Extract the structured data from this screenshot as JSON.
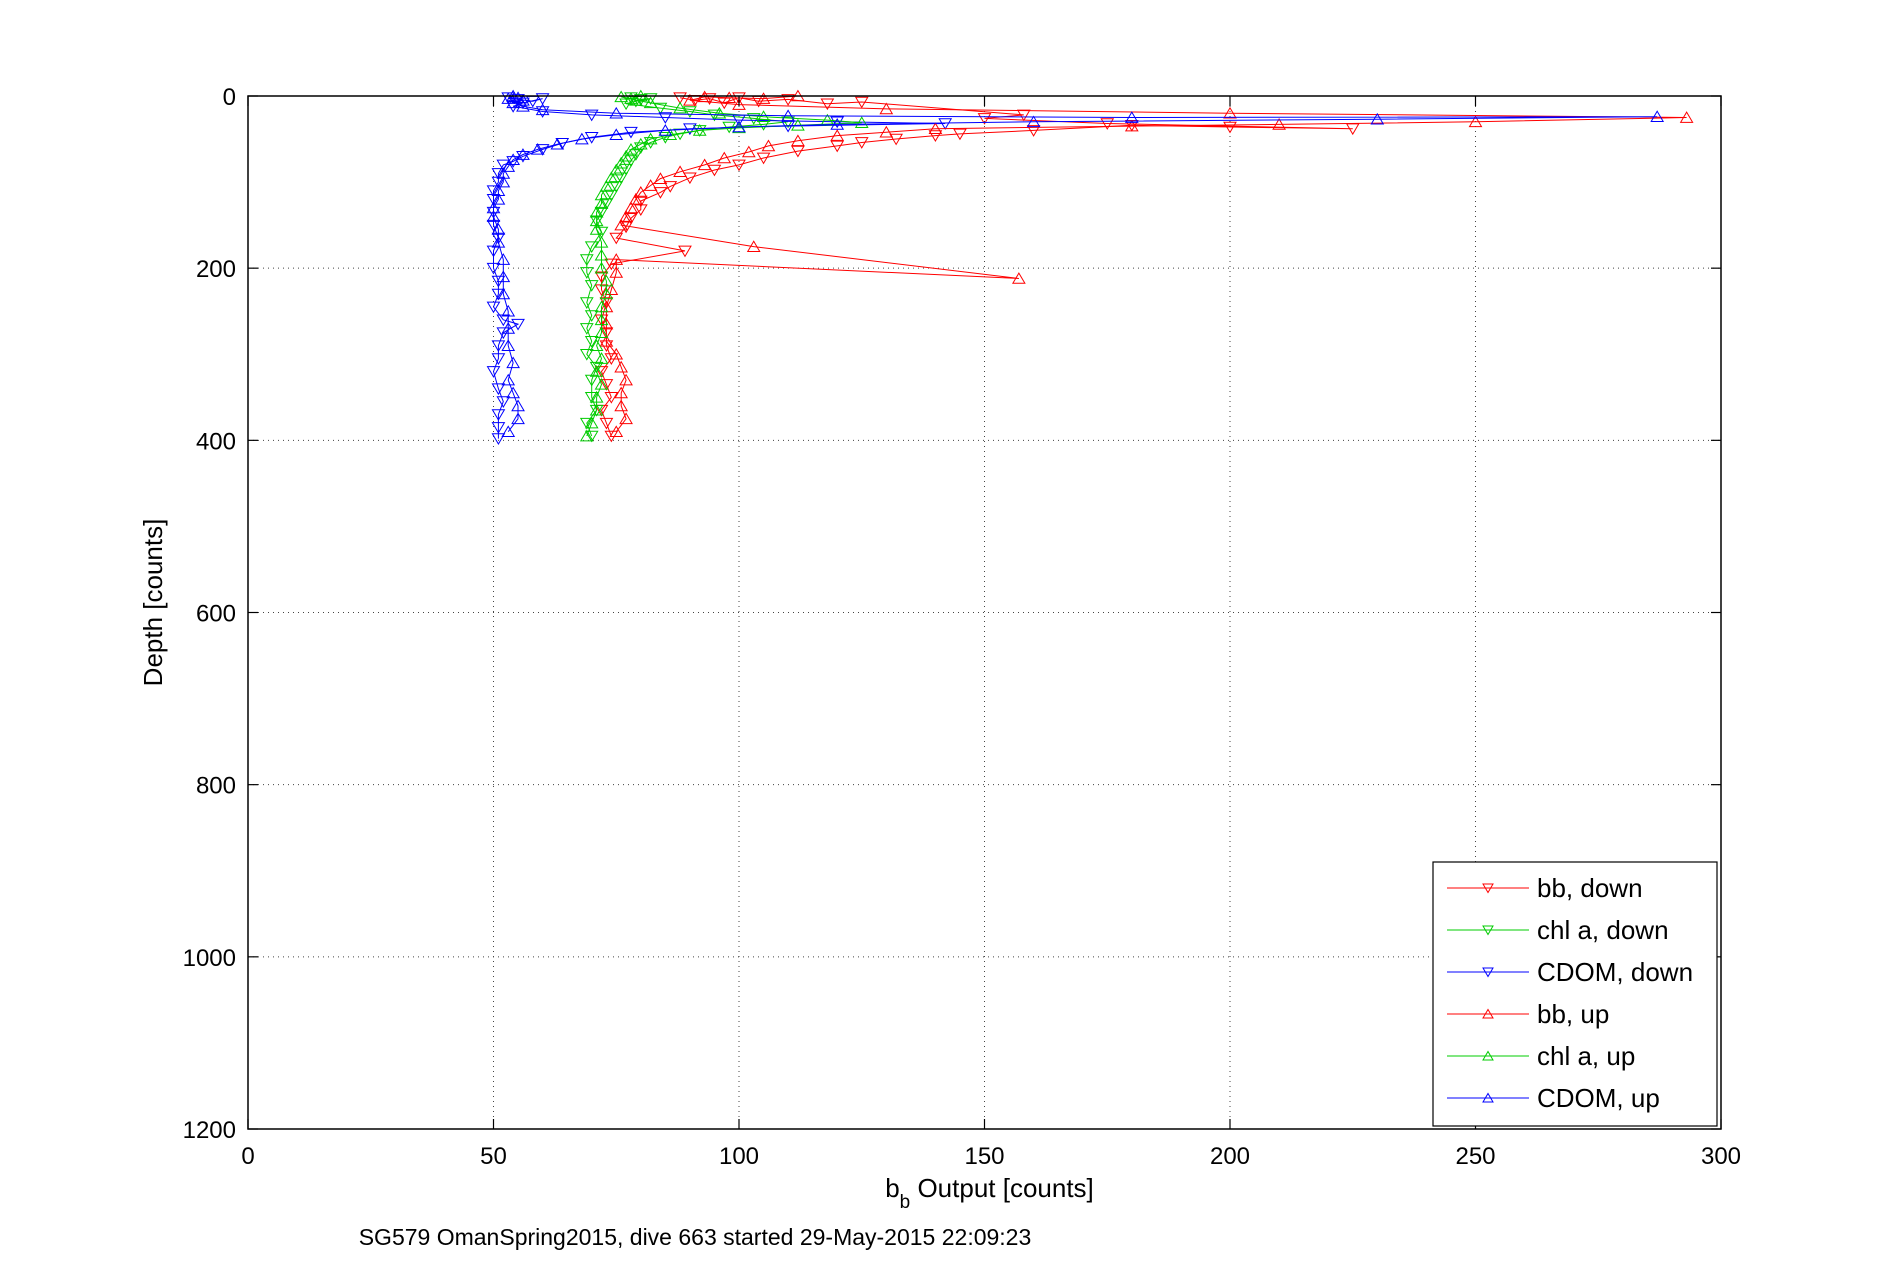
{
  "figure": {
    "caption": "SG579 OmanSpring2015, dive 663 started 29-May-2015 22:09:23"
  },
  "chart_data": {
    "type": "scatter",
    "title": "",
    "xlabel_main": "b",
    "xlabel_sub": "b",
    "xlabel_rest": " Output [counts]",
    "ylabel": "Depth [counts]",
    "xlim": [
      0,
      300
    ],
    "ylim": [
      0,
      1200
    ],
    "y_reversed": true,
    "grid": true,
    "legend_position": "bottom-right",
    "xticks": [
      0,
      50,
      100,
      150,
      200,
      250,
      300
    ],
    "yticks": [
      0,
      200,
      400,
      600,
      800,
      1000,
      1200
    ],
    "xtick_labels": [
      "0",
      "50",
      "100",
      "150",
      "200",
      "250",
      "300"
    ],
    "ytick_labels": [
      "0",
      "200",
      "400",
      "600",
      "800",
      "1000",
      "1200"
    ],
    "series": [
      {
        "name": "bb, down",
        "color": "#ff0000",
        "marker": "triangle-down",
        "line": true,
        "points": [
          [
            88,
            2
          ],
          [
            91,
            5
          ],
          [
            94,
            3
          ],
          [
            97,
            8
          ],
          [
            100,
            2
          ],
          [
            104,
            6
          ],
          [
            110,
            4
          ],
          [
            118,
            9
          ],
          [
            125,
            7
          ],
          [
            158,
            22
          ],
          [
            150,
            26
          ],
          [
            175,
            32
          ],
          [
            225,
            38
          ],
          [
            200,
            36
          ],
          [
            180,
            34
          ],
          [
            160,
            40
          ],
          [
            145,
            44
          ],
          [
            140,
            46
          ],
          [
            132,
            50
          ],
          [
            125,
            54
          ],
          [
            120,
            58
          ],
          [
            112,
            64
          ],
          [
            105,
            72
          ],
          [
            100,
            80
          ],
          [
            95,
            86
          ],
          [
            90,
            95
          ],
          [
            86,
            105
          ],
          [
            84,
            112
          ],
          [
            80,
            122
          ],
          [
            80,
            132
          ],
          [
            78,
            142
          ],
          [
            77,
            152
          ],
          [
            75,
            165
          ],
          [
            89,
            180
          ],
          [
            74,
            195
          ],
          [
            72,
            210
          ],
          [
            72,
            225
          ],
          [
            73,
            240
          ],
          [
            72,
            260
          ],
          [
            73,
            275
          ],
          [
            73,
            290
          ],
          [
            74,
            305
          ],
          [
            72,
            320
          ],
          [
            73,
            335
          ],
          [
            74,
            350
          ],
          [
            72,
            365
          ],
          [
            73,
            380
          ],
          [
            74,
            395
          ]
        ]
      },
      {
        "name": "chl a, down",
        "color": "#00cc00",
        "marker": "triangle-down",
        "line": true,
        "points": [
          [
            78,
            2
          ],
          [
            80,
            4
          ],
          [
            82,
            3
          ],
          [
            79,
            6
          ],
          [
            77,
            9
          ],
          [
            84,
            14
          ],
          [
            90,
            18
          ],
          [
            95,
            22
          ],
          [
            103,
            26
          ],
          [
            110,
            30
          ],
          [
            105,
            33
          ],
          [
            98,
            36
          ],
          [
            92,
            40
          ],
          [
            88,
            44
          ],
          [
            85,
            48
          ],
          [
            82,
            54
          ],
          [
            80,
            60
          ],
          [
            79,
            68
          ],
          [
            78,
            75
          ],
          [
            77,
            85
          ],
          [
            76,
            95
          ],
          [
            75,
            105
          ],
          [
            74,
            115
          ],
          [
            73,
            125
          ],
          [
            72,
            135
          ],
          [
            71,
            145
          ],
          [
            72,
            158
          ],
          [
            70,
            175
          ],
          [
            69,
            190
          ],
          [
            69,
            205
          ],
          [
            70,
            220
          ],
          [
            69,
            240
          ],
          [
            70,
            255
          ],
          [
            69,
            270
          ],
          [
            70,
            285
          ],
          [
            69,
            300
          ],
          [
            71,
            315
          ],
          [
            70,
            330
          ],
          [
            70,
            350
          ],
          [
            71,
            365
          ],
          [
            69,
            380
          ],
          [
            70,
            395
          ]
        ]
      },
      {
        "name": "CDOM, down",
        "color": "#0000ff",
        "marker": "triangle-down",
        "line": true,
        "points": [
          [
            53,
            2
          ],
          [
            55,
            4
          ],
          [
            58,
            6
          ],
          [
            60,
            3
          ],
          [
            56,
            8
          ],
          [
            54,
            12
          ],
          [
            60,
            18
          ],
          [
            70,
            22
          ],
          [
            85,
            25
          ],
          [
            100,
            28
          ],
          [
            120,
            30
          ],
          [
            142,
            32
          ],
          [
            110,
            35
          ],
          [
            90,
            38
          ],
          [
            78,
            42
          ],
          [
            70,
            48
          ],
          [
            64,
            55
          ],
          [
            60,
            62
          ],
          [
            56,
            70
          ],
          [
            54,
            76
          ],
          [
            52,
            80
          ],
          [
            51,
            90
          ],
          [
            51,
            100
          ],
          [
            50,
            110
          ],
          [
            50,
            120
          ],
          [
            50,
            135
          ],
          [
            50,
            150
          ],
          [
            51,
            165
          ],
          [
            50,
            180
          ],
          [
            50,
            200
          ],
          [
            51,
            215
          ],
          [
            51,
            230
          ],
          [
            50,
            245
          ],
          [
            52,
            260
          ],
          [
            55,
            265
          ],
          [
            52,
            275
          ],
          [
            51,
            290
          ],
          [
            51,
            305
          ],
          [
            50,
            320
          ],
          [
            51,
            340
          ],
          [
            52,
            355
          ],
          [
            51,
            370
          ],
          [
            51,
            385
          ],
          [
            51,
            398
          ]
        ]
      },
      {
        "name": "bb, up",
        "color": "#ff0000",
        "marker": "triangle-up",
        "line": true,
        "points": [
          [
            112,
            0
          ],
          [
            105,
            3
          ],
          [
            98,
            2
          ],
          [
            93,
            1
          ],
          [
            90,
            5
          ],
          [
            100,
            10
          ],
          [
            130,
            15
          ],
          [
            200,
            20
          ],
          [
            293,
            25
          ],
          [
            250,
            30
          ],
          [
            210,
            33
          ],
          [
            180,
            35
          ],
          [
            140,
            38
          ],
          [
            130,
            42
          ],
          [
            120,
            46
          ],
          [
            112,
            52
          ],
          [
            106,
            58
          ],
          [
            102,
            65
          ],
          [
            97,
            72
          ],
          [
            93,
            80
          ],
          [
            88,
            88
          ],
          [
            84,
            96
          ],
          [
            82,
            104
          ],
          [
            80,
            112
          ],
          [
            79,
            120
          ],
          [
            78,
            130
          ],
          [
            77,
            140
          ],
          [
            76,
            150
          ],
          [
            103,
            175
          ],
          [
            157,
            212
          ],
          [
            75,
            190
          ],
          [
            75,
            205
          ],
          [
            74,
            225
          ],
          [
            73,
            245
          ],
          [
            73,
            265
          ],
          [
            73,
            285
          ],
          [
            75,
            300
          ],
          [
            76,
            315
          ],
          [
            77,
            330
          ],
          [
            76,
            345
          ],
          [
            76,
            360
          ],
          [
            77,
            375
          ],
          [
            75,
            390
          ]
        ]
      },
      {
        "name": "chl a, up",
        "color": "#00cc00",
        "marker": "triangle-up",
        "line": true,
        "points": [
          [
            80,
            0
          ],
          [
            78,
            3
          ],
          [
            76,
            1
          ],
          [
            79,
            5
          ],
          [
            82,
            8
          ],
          [
            88,
            14
          ],
          [
            96,
            20
          ],
          [
            105,
            24
          ],
          [
            118,
            28
          ],
          [
            125,
            31
          ],
          [
            112,
            34
          ],
          [
            100,
            37
          ],
          [
            92,
            40
          ],
          [
            86,
            45
          ],
          [
            82,
            50
          ],
          [
            80,
            56
          ],
          [
            78,
            62
          ],
          [
            77,
            70
          ],
          [
            76,
            78
          ],
          [
            75,
            86
          ],
          [
            74,
            95
          ],
          [
            73,
            105
          ],
          [
            72,
            115
          ],
          [
            72,
            125
          ],
          [
            71,
            135
          ],
          [
            71,
            145
          ],
          [
            71,
            155
          ],
          [
            72,
            170
          ],
          [
            72,
            185
          ],
          [
            72,
            200
          ],
          [
            73,
            215
          ],
          [
            73,
            230
          ],
          [
            72,
            245
          ],
          [
            72,
            260
          ],
          [
            72,
            275
          ],
          [
            71,
            290
          ],
          [
            72,
            305
          ],
          [
            71,
            320
          ],
          [
            72,
            335
          ],
          [
            71,
            350
          ],
          [
            71,
            365
          ],
          [
            70,
            380
          ],
          [
            69,
            395
          ]
        ]
      },
      {
        "name": "CDOM, up",
        "color": "#0000ff",
        "marker": "triangle-up",
        "line": true,
        "points": [
          [
            54,
            0
          ],
          [
            53,
            3
          ],
          [
            55,
            2
          ],
          [
            56,
            5
          ],
          [
            54,
            8
          ],
          [
            56,
            12
          ],
          [
            60,
            16
          ],
          [
            75,
            20
          ],
          [
            110,
            23
          ],
          [
            180,
            25
          ],
          [
            287,
            24
          ],
          [
            230,
            27
          ],
          [
            160,
            30
          ],
          [
            120,
            33
          ],
          [
            100,
            36
          ],
          [
            85,
            40
          ],
          [
            75,
            45
          ],
          [
            68,
            50
          ],
          [
            63,
            56
          ],
          [
            59,
            62
          ],
          [
            56,
            68
          ],
          [
            54,
            74
          ],
          [
            53,
            82
          ],
          [
            52,
            90
          ],
          [
            52,
            100
          ],
          [
            51,
            110
          ],
          [
            51,
            120
          ],
          [
            50,
            130
          ],
          [
            50,
            140
          ],
          [
            51,
            155
          ],
          [
            51,
            170
          ],
          [
            52,
            190
          ],
          [
            52,
            210
          ],
          [
            52,
            230
          ],
          [
            53,
            250
          ],
          [
            53,
            270
          ],
          [
            53,
            290
          ],
          [
            54,
            310
          ],
          [
            53,
            330
          ],
          [
            54,
            345
          ],
          [
            55,
            360
          ],
          [
            55,
            375
          ],
          [
            53,
            390
          ]
        ]
      }
    ]
  }
}
